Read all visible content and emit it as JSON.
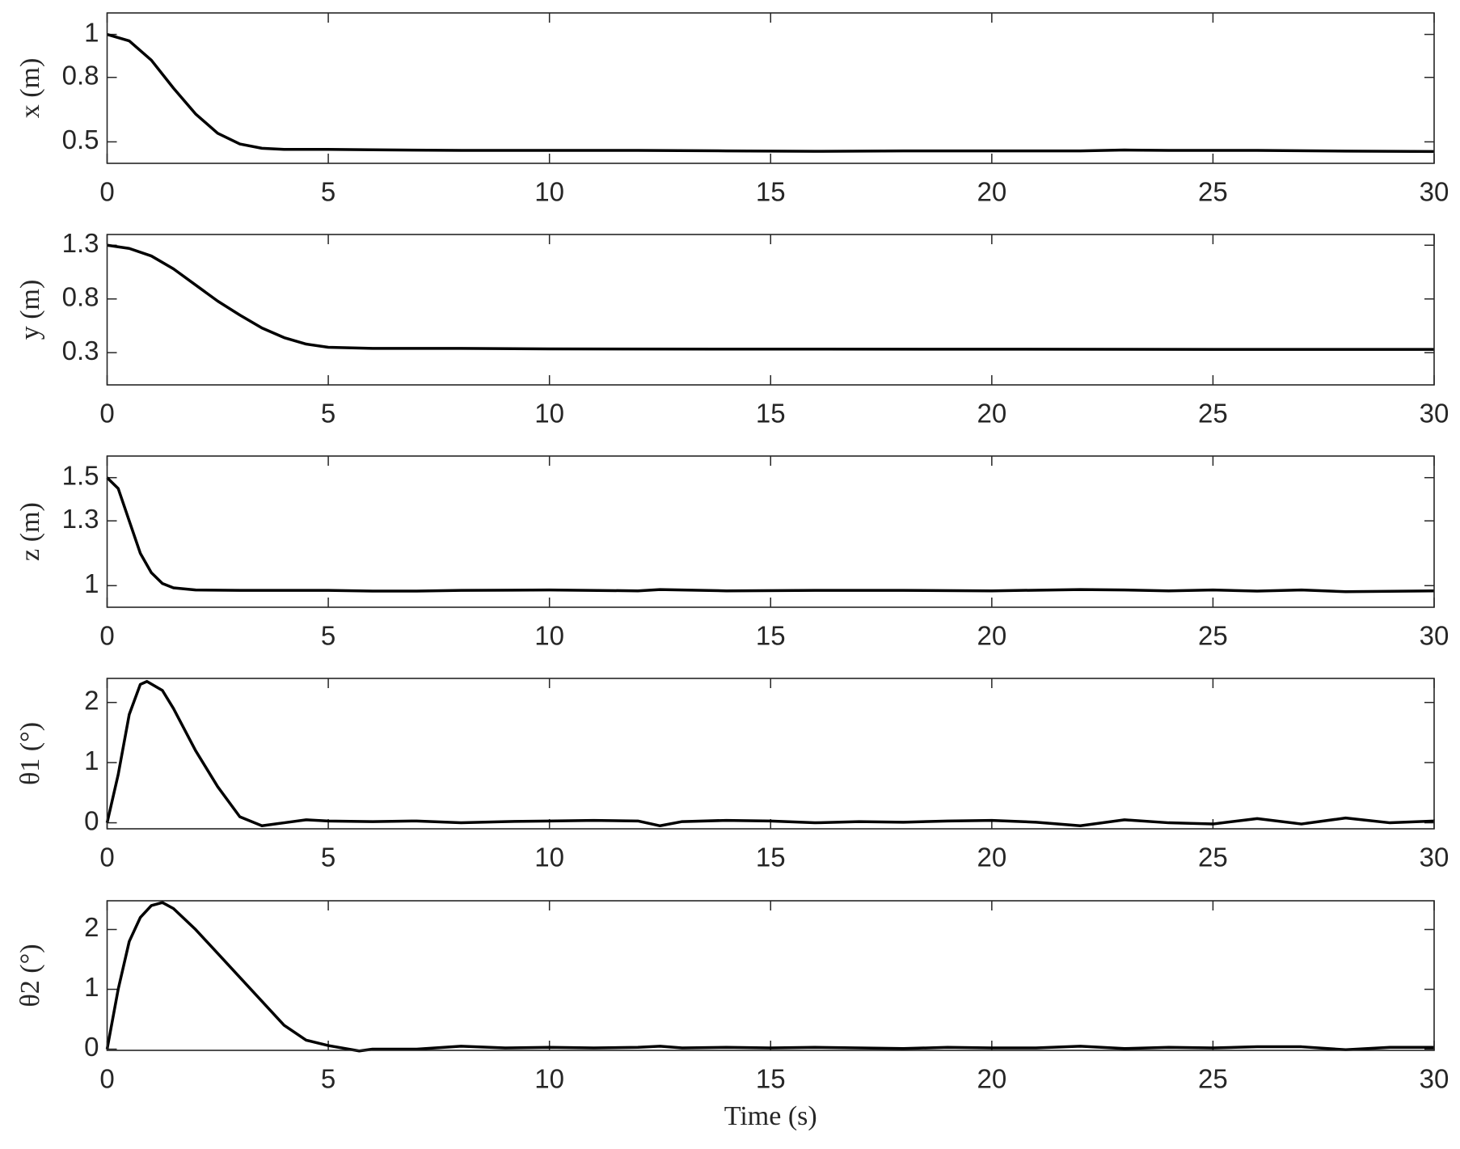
{
  "chart_data": [
    {
      "type": "line",
      "y_label": "x (m)",
      "color": "#000000",
      "x": [
        0,
        0.5,
        1,
        1.5,
        2,
        2.5,
        3,
        3.5,
        4,
        5,
        6,
        8,
        10,
        12,
        14,
        16,
        18,
        20,
        22,
        23,
        24,
        26,
        28,
        30
      ],
      "values": [
        1.0,
        0.97,
        0.88,
        0.75,
        0.63,
        0.54,
        0.49,
        0.47,
        0.465,
        0.465,
        0.463,
        0.46,
        0.46,
        0.46,
        0.458,
        0.456,
        0.458,
        0.458,
        0.458,
        0.462,
        0.46,
        0.46,
        0.457,
        0.455
      ],
      "xlim": [
        0,
        30
      ],
      "xticks": [
        0,
        5,
        10,
        15,
        20,
        25,
        30
      ],
      "ylim": [
        0.4,
        1.1
      ],
      "yticks": [
        0.5,
        0.8,
        1
      ]
    },
    {
      "type": "line",
      "y_label": "y (m)",
      "color": "#000000",
      "x": [
        0,
        0.5,
        1,
        1.5,
        2,
        2.5,
        3,
        3.5,
        4,
        4.5,
        5,
        6,
        8,
        10,
        15,
        20,
        25,
        30
      ],
      "values": [
        1.3,
        1.27,
        1.2,
        1.08,
        0.93,
        0.78,
        0.65,
        0.53,
        0.44,
        0.38,
        0.35,
        0.34,
        0.34,
        0.335,
        0.333,
        0.332,
        0.33,
        0.33
      ],
      "xlim": [
        0,
        30
      ],
      "xticks": [
        0,
        5,
        10,
        15,
        20,
        25,
        30
      ],
      "ylim": [
        0,
        1.4
      ],
      "yticks": [
        0.3,
        0.8,
        1.3
      ]
    },
    {
      "type": "line",
      "y_label": "z (m)",
      "color": "#000000",
      "x": [
        0,
        0.25,
        0.5,
        0.75,
        1,
        1.25,
        1.5,
        2,
        3,
        4,
        5,
        6,
        7,
        8,
        10,
        12,
        12.5,
        14,
        16,
        18,
        20,
        22,
        23,
        24,
        25,
        26,
        27,
        28,
        30
      ],
      "values": [
        1.5,
        1.45,
        1.3,
        1.15,
        1.06,
        1.01,
        0.99,
        0.98,
        0.978,
        0.978,
        0.978,
        0.975,
        0.975,
        0.978,
        0.98,
        0.976,
        0.982,
        0.976,
        0.978,
        0.978,
        0.976,
        0.982,
        0.98,
        0.976,
        0.98,
        0.975,
        0.98,
        0.972,
        0.976
      ],
      "xlim": [
        0,
        30
      ],
      "xticks": [
        0,
        5,
        10,
        15,
        20,
        25,
        30
      ],
      "ylim": [
        0.9,
        1.6
      ],
      "yticks": [
        1,
        1.3,
        1.5
      ]
    },
    {
      "type": "line",
      "y_label": "θ1 (°)",
      "color": "#000000",
      "x": [
        0,
        0.25,
        0.5,
        0.75,
        0.9,
        1.25,
        1.5,
        2,
        2.5,
        3,
        3.5,
        4,
        4.5,
        5,
        6,
        7,
        8,
        9,
        10,
        11,
        12,
        12.5,
        13,
        14,
        15,
        16,
        17,
        18,
        19,
        20,
        21,
        22,
        23,
        24,
        25,
        26,
        27,
        28,
        29,
        30
      ],
      "values": [
        0,
        0.8,
        1.8,
        2.3,
        2.35,
        2.2,
        1.9,
        1.2,
        0.6,
        0.1,
        -0.05,
        0,
        0.05,
        0.03,
        0.02,
        0.03,
        0,
        0.02,
        0.03,
        0.04,
        0.03,
        -0.05,
        0.02,
        0.04,
        0.03,
        0,
        0.02,
        0.01,
        0.03,
        0.04,
        0.01,
        -0.05,
        0.05,
        0,
        -0.02,
        0.07,
        -0.02,
        0.08,
        0,
        0.03
      ],
      "xlim": [
        0,
        30
      ],
      "xticks": [
        0,
        5,
        10,
        15,
        20,
        25,
        30
      ],
      "ylim": [
        -0.1,
        2.4
      ],
      "yticks": [
        0,
        1,
        2
      ]
    },
    {
      "type": "line",
      "y_label": "θ2 (°)",
      "x_label": "Time (s)",
      "color": "#000000",
      "x": [
        0,
        0.25,
        0.5,
        0.75,
        1,
        1.25,
        1.5,
        2,
        2.5,
        3,
        3.5,
        4,
        4.5,
        5,
        5.7,
        6,
        7,
        8,
        9,
        10,
        11,
        12,
        12.5,
        13,
        14,
        15,
        16,
        17,
        18,
        19,
        20,
        21,
        22,
        23,
        24,
        25,
        26,
        27,
        28,
        29,
        30
      ],
      "values": [
        0,
        1,
        1.8,
        2.2,
        2.4,
        2.45,
        2.35,
        2.0,
        1.6,
        1.2,
        0.8,
        0.4,
        0.15,
        0.06,
        -0.03,
        0,
        0,
        0.05,
        0.02,
        0.03,
        0.02,
        0.03,
        0.05,
        0.02,
        0.03,
        0.02,
        0.03,
        0.02,
        0.01,
        0.03,
        0.02,
        0.02,
        0.05,
        0.01,
        0.03,
        0.02,
        0.04,
        0.04,
        -0.01,
        0.03,
        0.03
      ],
      "xlim": [
        0,
        30
      ],
      "xticks": [
        0,
        5,
        10,
        15,
        20,
        25,
        30
      ],
      "ylim": [
        -0.02,
        2.48
      ],
      "yticks": [
        0,
        1,
        2
      ]
    }
  ]
}
